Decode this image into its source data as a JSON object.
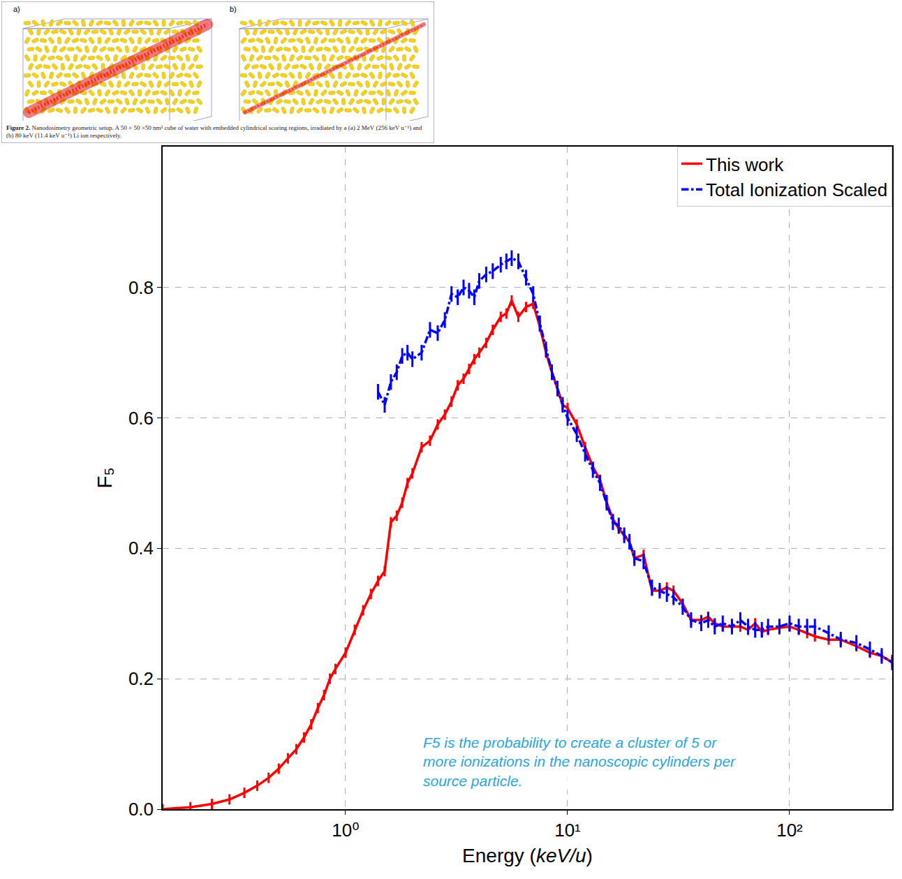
{
  "chart_data": {
    "type": "line",
    "x_title": "Energy (keV/u)",
    "y_title": "F₅",
    "log": "x",
    "grid": true,
    "legend": "upper right",
    "xlim": [
      0.15,
      290
    ],
    "xticks": [
      {
        "value": 1,
        "label": "10⁰"
      },
      {
        "value": 10,
        "label": "10¹"
      },
      {
        "value": 100,
        "label": "10²"
      }
    ],
    "ylim": [
      0,
      1.016
    ],
    "yticks": [
      {
        "value": 0,
        "label": "0.0"
      },
      0.2,
      0.4,
      0.6,
      0.8
    ],
    "annotation": "F5 is the probability to create a cluster of 5 or more ionizations in the nanoscopic cylinders per source particle.",
    "inset": {
      "panels": [
        "a)",
        "b)"
      ],
      "caption_label": "Figure 2.",
      "caption": "Nanodosimetry geometric setup. A 50 × 50 ×50 nm³ cube of water with embedded cylindrical scoring regions, irradiated by a (a) 2 MeV (256 keV u⁻¹) and (b) 80 keV (11.4 keV u⁻¹) Li ion respectively."
    },
    "series": [
      {
        "name": "This work",
        "color": "#ff0000",
        "line_style": "solid",
        "error": 0.008,
        "x": [
          0.15,
          0.2,
          0.25,
          0.3,
          0.35,
          0.4,
          0.45,
          0.5,
          0.55,
          0.6,
          0.65,
          0.7,
          0.75,
          0.8,
          0.85,
          0.9,
          1.0,
          1.1,
          1.2,
          1.3,
          1.4,
          1.5,
          1.6,
          1.7,
          1.8,
          1.9,
          2.0,
          2.2,
          2.4,
          2.6,
          2.8,
          3.0,
          3.2,
          3.4,
          3.6,
          3.8,
          4.0,
          4.3,
          4.6,
          5.0,
          5.3,
          5.6,
          6.0,
          6.5,
          7.0,
          7.5,
          8.0,
          8.5,
          9.0,
          9.5,
          10,
          11,
          12,
          13,
          14,
          15,
          16,
          17,
          18,
          19,
          20,
          22,
          24,
          26,
          28,
          30,
          33,
          36,
          40,
          43,
          46,
          50,
          55,
          60,
          65,
          70,
          75,
          80,
          90,
          100,
          110,
          120,
          130,
          150,
          170,
          200,
          230,
          260,
          290
        ],
        "values": [
          0.0,
          0.003,
          0.008,
          0.015,
          0.025,
          0.036,
          0.048,
          0.062,
          0.078,
          0.092,
          0.11,
          0.13,
          0.155,
          0.175,
          0.2,
          0.215,
          0.24,
          0.275,
          0.305,
          0.33,
          0.35,
          0.365,
          0.44,
          0.45,
          0.47,
          0.5,
          0.515,
          0.555,
          0.565,
          0.59,
          0.605,
          0.625,
          0.65,
          0.66,
          0.675,
          0.69,
          0.7,
          0.715,
          0.735,
          0.755,
          0.76,
          0.78,
          0.755,
          0.77,
          0.775,
          0.74,
          0.7,
          0.67,
          0.645,
          0.62,
          0.615,
          0.59,
          0.555,
          0.525,
          0.505,
          0.47,
          0.445,
          0.43,
          0.42,
          0.41,
          0.385,
          0.39,
          0.335,
          0.335,
          0.34,
          0.335,
          0.315,
          0.29,
          0.29,
          0.295,
          0.285,
          0.28,
          0.28,
          0.28,
          0.275,
          0.285,
          0.272,
          0.275,
          0.278,
          0.28,
          0.275,
          0.27,
          0.265,
          0.26,
          0.26,
          0.25,
          0.24,
          0.235,
          0.225
        ]
      },
      {
        "name": "Total Ionization Scaled",
        "color": "#0000ff",
        "line_style": "dashdot",
        "error": 0.012,
        "x": [
          1.4,
          1.5,
          1.6,
          1.7,
          1.8,
          1.9,
          2.0,
          2.2,
          2.4,
          2.6,
          2.8,
          3.0,
          3.2,
          3.4,
          3.6,
          3.8,
          4.0,
          4.3,
          4.6,
          5.0,
          5.3,
          5.6,
          6.0,
          6.5,
          7.0,
          7.5,
          8.0,
          8.5,
          9.0,
          9.5,
          10,
          11,
          12,
          13,
          14,
          15,
          16,
          17,
          18,
          19,
          20,
          22,
          24,
          26,
          28,
          30,
          33,
          36,
          40,
          43,
          46,
          50,
          55,
          60,
          65,
          70,
          75,
          80,
          90,
          100,
          110,
          120,
          130,
          150,
          170,
          200,
          230,
          260,
          290
        ],
        "values": [
          0.64,
          0.62,
          0.655,
          0.67,
          0.695,
          0.7,
          0.69,
          0.7,
          0.735,
          0.73,
          0.75,
          0.79,
          0.785,
          0.8,
          0.795,
          0.785,
          0.81,
          0.82,
          0.825,
          0.835,
          0.84,
          0.845,
          0.84,
          0.815,
          0.79,
          0.745,
          0.705,
          0.67,
          0.645,
          0.62,
          0.6,
          0.575,
          0.545,
          0.52,
          0.5,
          0.47,
          0.44,
          0.435,
          0.42,
          0.41,
          0.385,
          0.38,
          0.34,
          0.335,
          0.33,
          0.325,
          0.31,
          0.29,
          0.285,
          0.29,
          0.28,
          0.285,
          0.28,
          0.29,
          0.28,
          0.275,
          0.275,
          0.28,
          0.28,
          0.285,
          0.28,
          0.28,
          0.28,
          0.27,
          0.26,
          0.255,
          0.245,
          0.235,
          0.225
        ]
      }
    ]
  }
}
